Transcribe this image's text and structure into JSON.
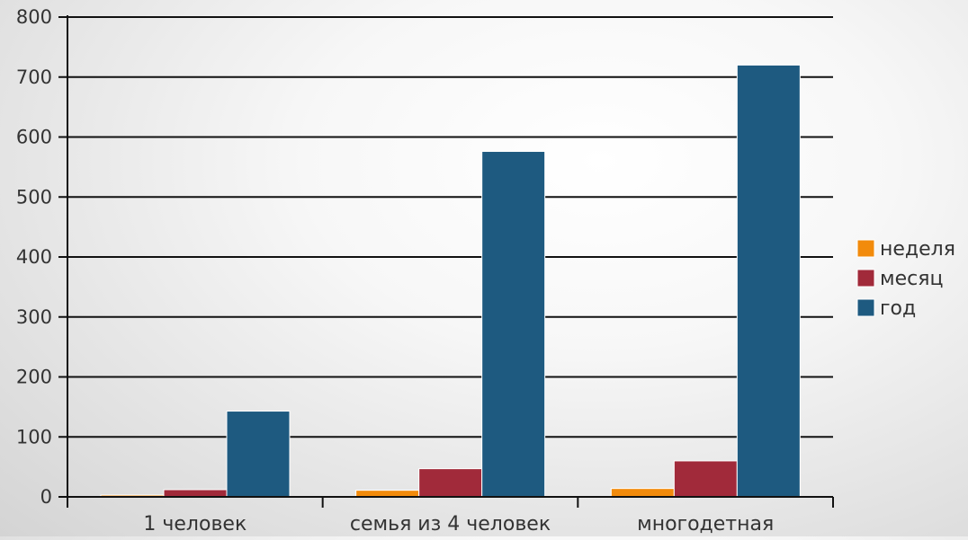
{
  "chart_data": {
    "type": "bar",
    "categories": [
      "1 человек",
      "семья из 4 человек",
      "многодетная"
    ],
    "series": [
      {
        "name": "неделя",
        "values": [
          3,
          11,
          14
        ],
        "color": "#f28b0c"
      },
      {
        "name": "месяц",
        "values": [
          12,
          47,
          60
        ],
        "color": "#a12a3a"
      },
      {
        "name": "год",
        "values": [
          143,
          576,
          720
        ],
        "color": "#1e5a80"
      }
    ],
    "ylim": [
      0,
      800
    ],
    "yticks": [
      0,
      100,
      200,
      300,
      400,
      500,
      600,
      700,
      800
    ],
    "grid": true,
    "legend_position": "right"
  }
}
